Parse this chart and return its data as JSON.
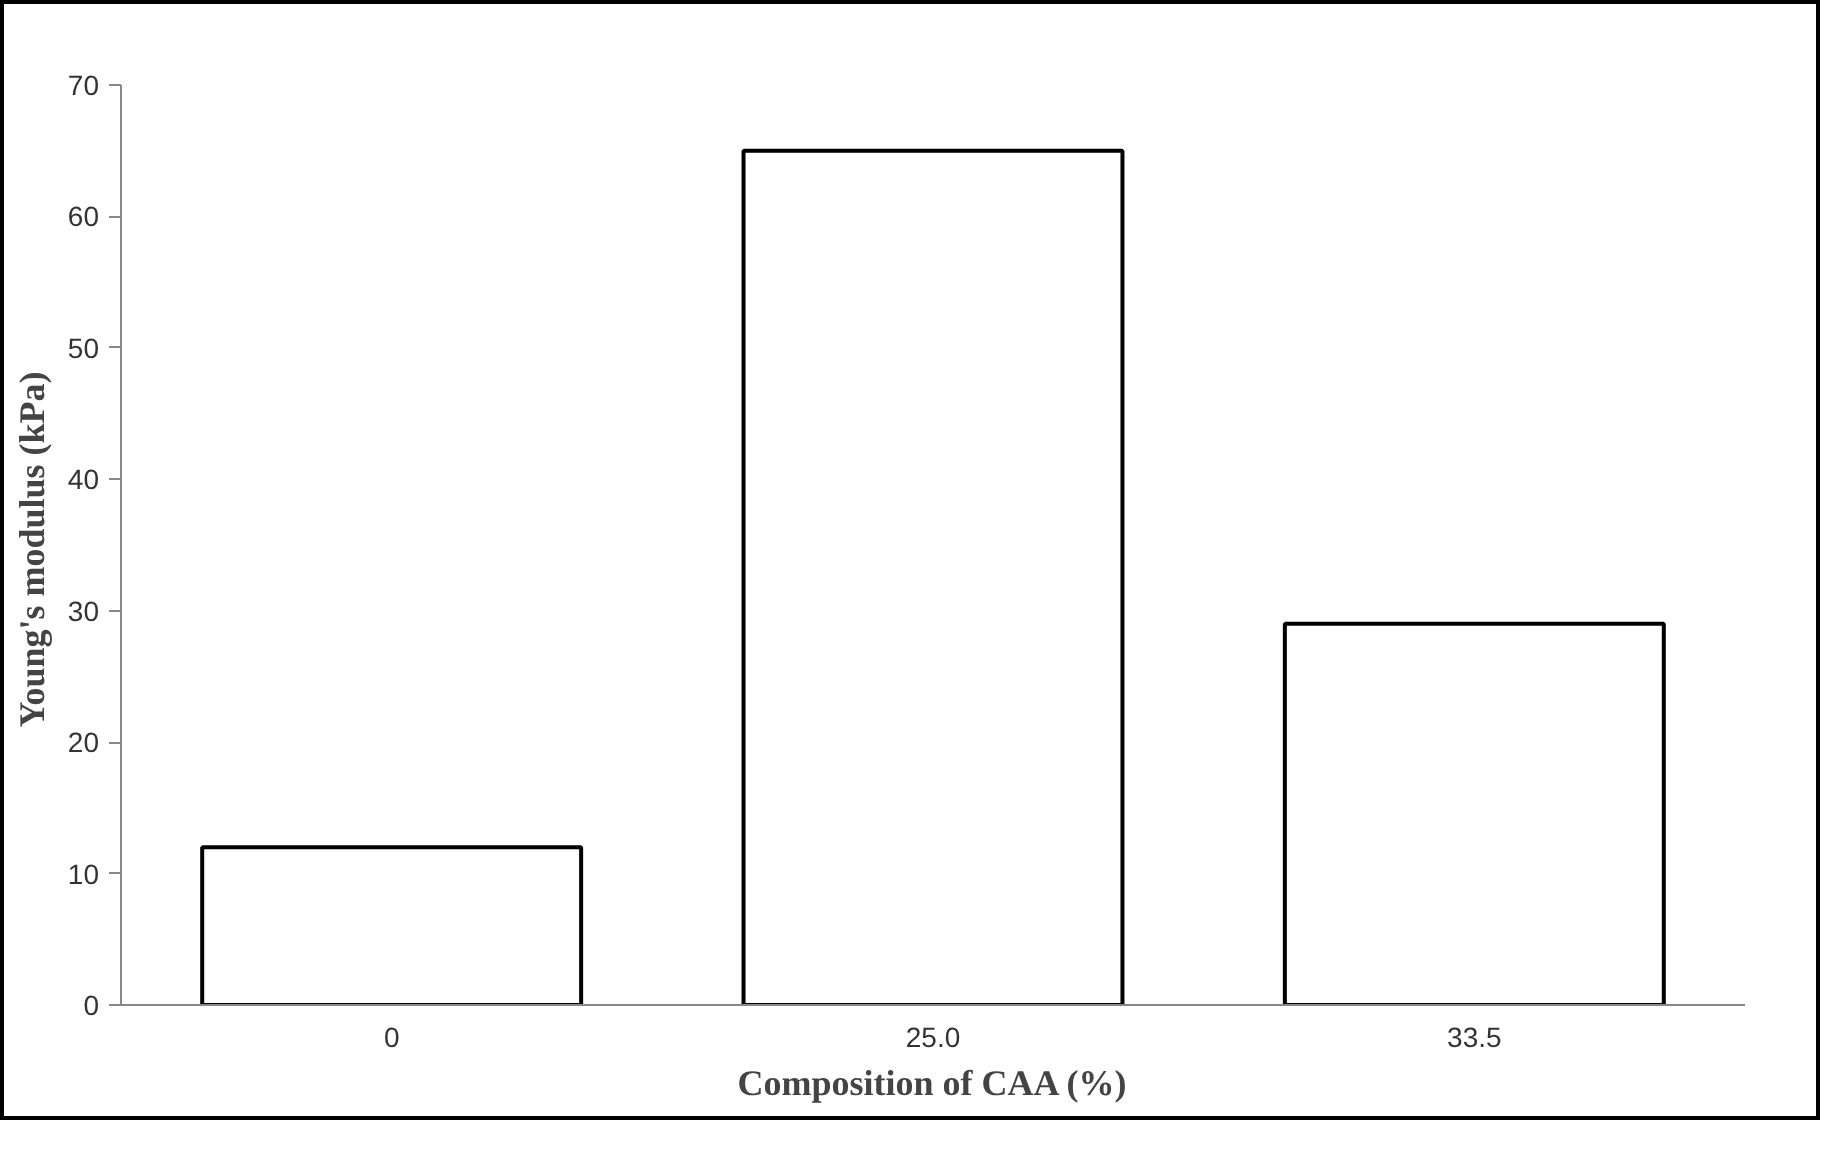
{
  "chart_data": {
    "type": "bar",
    "xlabel": "Composition of CAA (%)",
    "ylabel": "Young's modulus  (kPa)",
    "categories": [
      "0",
      "25.0",
      "33.5"
    ],
    "series": [
      {
        "color": "#ffffff",
        "values": [
          12,
          65,
          29
        ]
      }
    ],
    "ylim": [
      0,
      70
    ],
    "yticks": [
      0,
      10,
      20,
      30,
      40,
      50,
      60,
      70
    ],
    "grid": false
  }
}
